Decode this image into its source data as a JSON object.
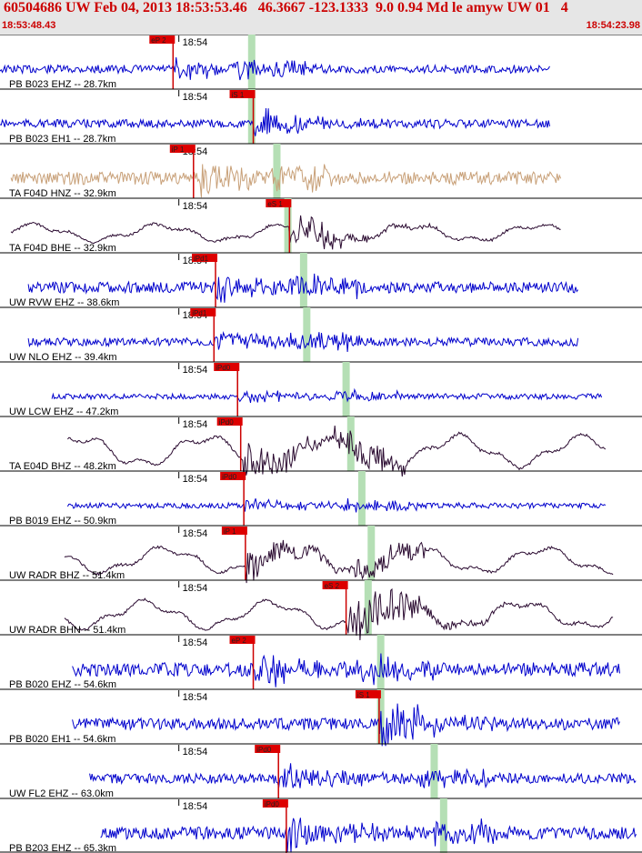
{
  "header": {
    "title": "60504686 UW Feb 04, 2013 18:53:53.46   46.3667 -123.1333  9.0 0.94 Md le amyw UW 01   4",
    "start_time": "18:53:48.43",
    "end_time": "18:54:23.98"
  },
  "colors": {
    "header_bg": "#e6e6e6",
    "header_text": "#cc0000",
    "blue_trace": "#0000cc",
    "tan_trace": "#c8a078",
    "dark_trace": "#2a0a30",
    "pick_box": "#dd0000",
    "green_band": "#b5dfb5",
    "pick_line": "#cc0000"
  },
  "chart_data": {
    "type": "line",
    "x_unit": "seconds",
    "xlim": [
      "18:53:48.43",
      "18:54:23.98"
    ],
    "tick_label": "18:54",
    "traces": [
      {
        "label": "PB B023 EHZ -- 28.7km",
        "color": "blue",
        "pick": "eP 2",
        "pick_time": 11.0,
        "arrival_time": 16.0,
        "start": 0.0,
        "end": 35.0,
        "amp": 9,
        "style": "noise"
      },
      {
        "label": "PB B023 EH1 -- 28.7km",
        "color": "blue",
        "pick": "iS 1",
        "pick_time": 16.1,
        "arrival_time": 16.0,
        "start": 0.0,
        "end": 35.0,
        "amp": 9,
        "style": "noise"
      },
      {
        "label": "TA F04D HNZ -- 32.9km",
        "color": "tan",
        "pick": "iP 1",
        "pick_time": 12.3,
        "arrival_time": 17.6,
        "start": 0.7,
        "end": 35.7,
        "amp": 14,
        "style": "noise"
      },
      {
        "label": "TA F04D BHE -- 32.9km",
        "color": "dark",
        "pick": "eS 1",
        "pick_time": 18.4,
        "arrival_time": 18.3,
        "start": 0.7,
        "end": 35.7,
        "amp": 10,
        "style": "wave"
      },
      {
        "label": "UW RVW EHZ -- 38.6km",
        "color": "blue",
        "pick": "iPd1",
        "pick_time": 13.7,
        "arrival_time": 19.3,
        "start": 1.8,
        "end": 36.8,
        "amp": 12,
        "style": "noise"
      },
      {
        "label": "UW NLO EHZ -- 39.4km",
        "color": "blue",
        "pick": "iPd1",
        "pick_time": 13.6,
        "arrival_time": 19.5,
        "start": 1.8,
        "end": 36.8,
        "amp": 9,
        "style": "noise"
      },
      {
        "label": "UW LCW EHZ -- 47.2km",
        "color": "blue",
        "pick": "iPd0",
        "pick_time": 15.1,
        "arrival_time": 22.0,
        "start": 3.3,
        "end": 38.3,
        "amp": 6,
        "style": "noise"
      },
      {
        "label": "TA E04D BHZ -- 48.2km",
        "color": "dark",
        "pick": "iPd0",
        "pick_time": 15.3,
        "arrival_time": 22.3,
        "start": 4.3,
        "end": 38.5,
        "amp": 18,
        "style": "wave"
      },
      {
        "label": "PB B019 EHZ -- 50.9km",
        "color": "blue",
        "pick": "iPd0",
        "pick_time": 15.5,
        "arrival_time": 23.0,
        "start": 4.3,
        "end": 38.5,
        "amp": 6,
        "style": "noise"
      },
      {
        "label": "UW RADR BHZ -- 51.4km",
        "color": "dark",
        "pick": "iP 1",
        "pick_time": 15.6,
        "arrival_time": 23.6,
        "start": 4.1,
        "end": 39.0,
        "amp": 15,
        "style": "wave"
      },
      {
        "label": "UW RADR BHN -- 51.4km",
        "color": "dark",
        "pick": "eS 2",
        "pick_time": 22.0,
        "arrival_time": 23.4,
        "start": 4.1,
        "end": 39.0,
        "amp": 16,
        "style": "wave"
      },
      {
        "label": "PB B020 EHZ -- 54.6km",
        "color": "blue",
        "pick": "eP 2",
        "pick_time": 16.1,
        "arrival_time": 24.2,
        "start": 4.6,
        "end": 39.4,
        "amp": 15,
        "style": "noise"
      },
      {
        "label": "PB B020 EH1 -- 54.6km",
        "color": "blue",
        "pick": "iS 1",
        "pick_time": 24.1,
        "arrival_time": 24.2,
        "start": 4.6,
        "end": 39.4,
        "amp": 13,
        "style": "noise"
      },
      {
        "label": "UW FL2 EHZ -- 63.0km",
        "color": "blue",
        "pick": "iPd0",
        "pick_time": 17.7,
        "arrival_time": 27.6,
        "start": 5.7,
        "end": 40.7,
        "amp": 11,
        "style": "noise"
      },
      {
        "label": "PB B203 EHZ -- 65.3km",
        "color": "blue",
        "pick": "iPd0",
        "pick_time": 18.2,
        "arrival_time": 28.2,
        "start": 6.4,
        "end": 41.3,
        "amp": 14,
        "style": "noise"
      }
    ]
  }
}
